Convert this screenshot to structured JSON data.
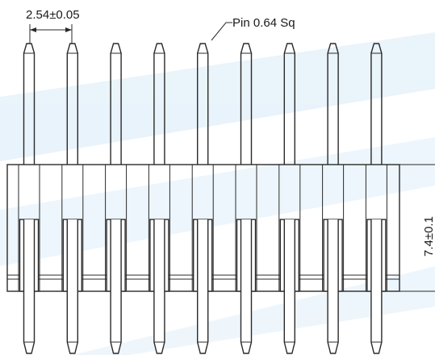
{
  "drawing": {
    "pin_count": 9,
    "dimensions": {
      "pitch": "2.54±0.05",
      "pin_size": "Pin 0.64 Sq",
      "housing_height": "7.4±0.1"
    },
    "colors": {
      "line": "#2a2a2a",
      "watermark": "#cfe6f7"
    }
  }
}
